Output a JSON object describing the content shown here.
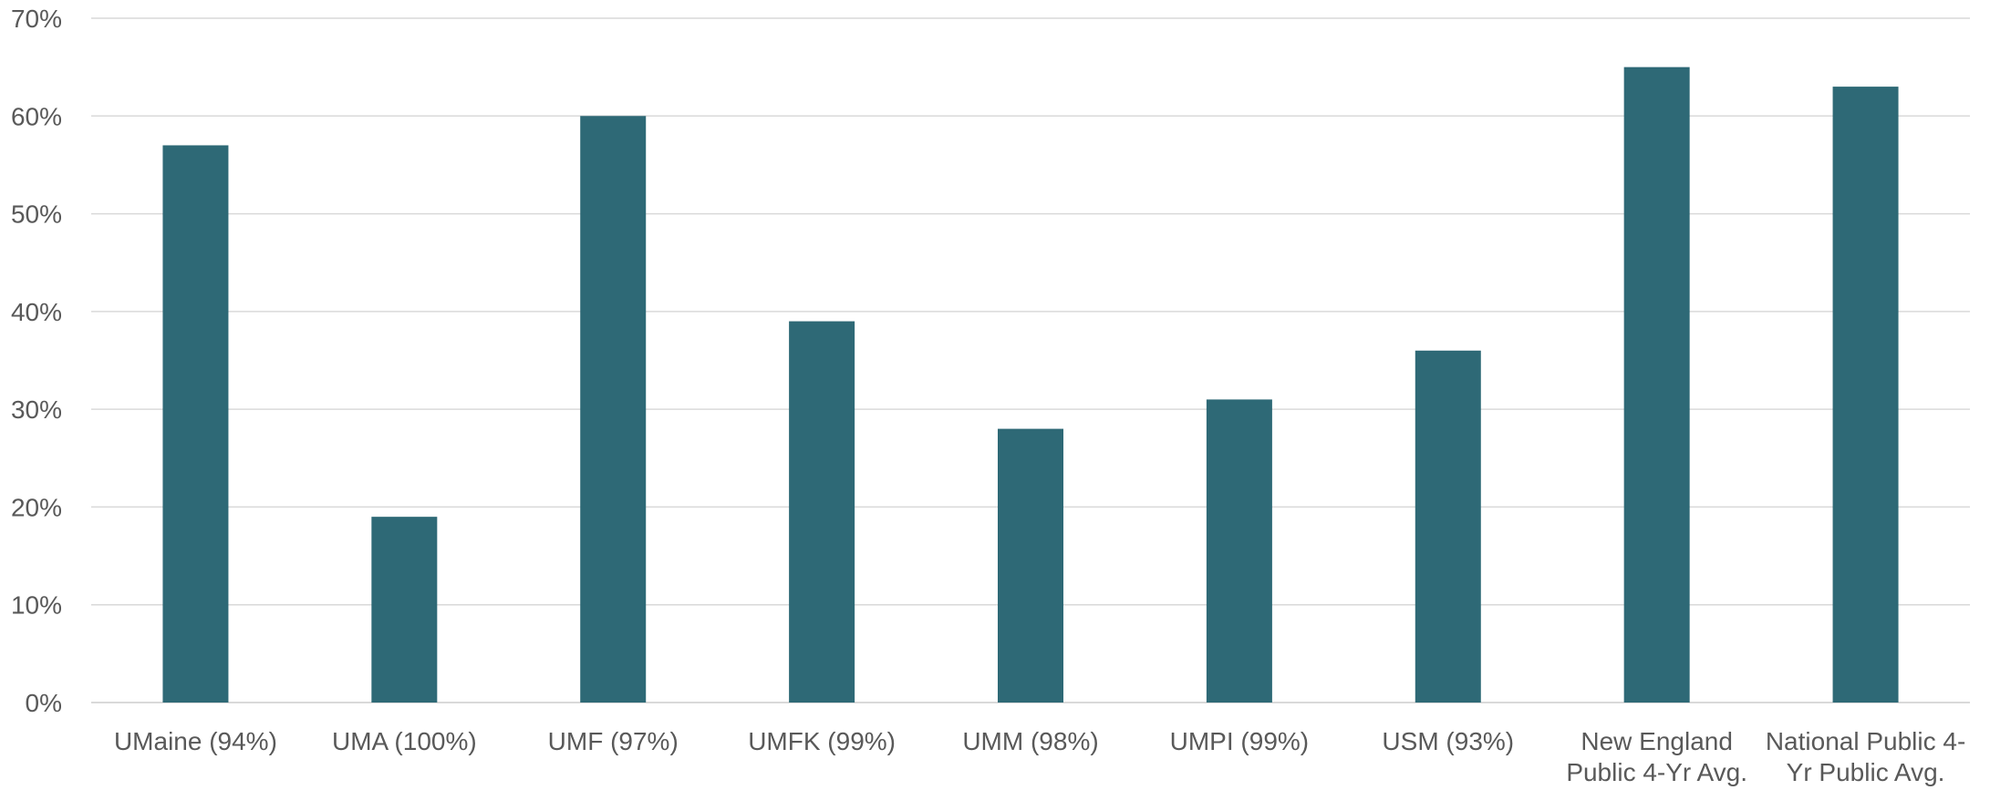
{
  "chart_data": {
    "type": "bar",
    "categories": [
      [
        "UMaine (94%)"
      ],
      [
        "UMA (100%)"
      ],
      [
        "UMF (97%)"
      ],
      [
        "UMFK (99%)"
      ],
      [
        "UMM (98%)"
      ],
      [
        "UMPI (99%)"
      ],
      [
        "USM (93%)"
      ],
      [
        "New England",
        "Public 4-Yr Avg."
      ],
      [
        "National Public 4-",
        "Yr Public Avg."
      ]
    ],
    "values": [
      57,
      19,
      60,
      39,
      28,
      31,
      36,
      65,
      63
    ],
    "ylim": [
      0,
      70
    ],
    "yticks": [
      0,
      10,
      20,
      30,
      40,
      50,
      60,
      70
    ],
    "ytick_labels": [
      "0%",
      "10%",
      "20%",
      "30%",
      "40%",
      "50%",
      "60%",
      "70%"
    ],
    "grid": true,
    "bar_color": "#2e6976"
  }
}
